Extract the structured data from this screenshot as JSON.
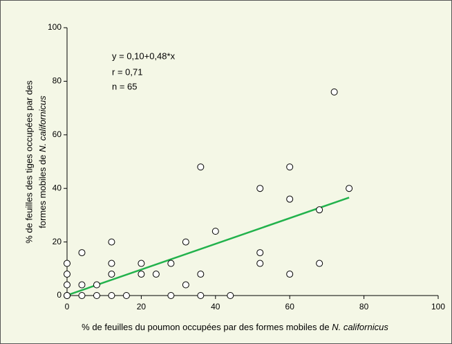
{
  "chart_data": {
    "type": "scatter",
    "xlabel": {
      "text": "% de feuilles du poumon occupées par des formes mobiles de ",
      "italic": "N. californicus"
    },
    "ylabel": {
      "line1": "% de feuilles des tiges occupées par des",
      "line2": "formes mobiles de ",
      "italic": "N. californicus"
    },
    "annotations": [
      "y = 0,10+0,48*x",
      "r = 0,71",
      "n = 65"
    ],
    "x": [
      0,
      0,
      0,
      0,
      0,
      4,
      4,
      4,
      8,
      8,
      12,
      12,
      12,
      12,
      16,
      20,
      20,
      24,
      28,
      28,
      32,
      32,
      36,
      36,
      36,
      40,
      44,
      52,
      52,
      52,
      60,
      60,
      60,
      68,
      68,
      72,
      76
    ],
    "y": [
      0,
      4,
      8,
      12,
      0,
      16,
      4,
      0,
      0,
      4,
      20,
      12,
      8,
      0,
      0,
      12,
      8,
      8,
      12,
      0,
      20,
      4,
      48,
      8,
      0,
      24,
      0,
      40,
      16,
      12,
      48,
      36,
      8,
      32,
      12,
      76,
      40
    ],
    "marker_color": "#000000",
    "fit": {
      "x": [
        0,
        76
      ],
      "y": [
        0.1,
        36.58
      ],
      "color": "#22b24c"
    },
    "xlim": [
      0,
      100
    ],
    "ylim": [
      0,
      100
    ],
    "xticks": [
      0,
      20,
      40,
      60,
      80,
      100
    ],
    "yticks": [
      0,
      20,
      40,
      60,
      80,
      100
    ]
  }
}
